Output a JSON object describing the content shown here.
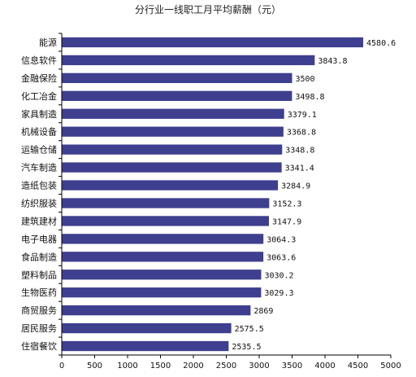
{
  "chart_data": {
    "type": "bar",
    "orientation": "horizontal",
    "title": "分行业一线职工月平均薪酬（元）",
    "xlabel": "",
    "ylabel": "",
    "xlim": [
      0,
      5000
    ],
    "xticks": [
      "0",
      "500",
      "1000",
      "1500",
      "2000",
      "2500",
      "3000",
      "3500",
      "4000",
      "4500",
      "5000"
    ],
    "grid": false,
    "legend": "none",
    "bar_color": "#3f3f8f",
    "categories": [
      "能源",
      "信息软件",
      "金融保险",
      "化工冶金",
      "家具制造",
      "机械设备",
      "运输仓储",
      "汽车制造",
      "造纸包装",
      "纺织服装",
      "建筑建材",
      "电子电器",
      "食品制造",
      "塑料制品",
      "生物医药",
      "商贸服务",
      "居民服务",
      "住宿餐饮"
    ],
    "values": [
      4580.6,
      3843.8,
      3500,
      3498.8,
      3379.1,
      3368.8,
      3348.8,
      3341.4,
      3284.9,
      3152.3,
      3147.9,
      3064.3,
      3063.6,
      3030.2,
      3029.3,
      2869,
      2575.5,
      2535.5
    ],
    "value_labels": [
      "4580.6",
      "3843.8",
      "3500",
      "3498.8",
      "3379.1",
      "3368.8",
      "3348.8",
      "3341.4",
      "3284.9",
      "3152.3",
      "3147.9",
      "3064.3",
      "3063.6",
      "3030.2",
      "3029.3",
      "2869",
      "2575.5",
      "2535.5"
    ]
  }
}
